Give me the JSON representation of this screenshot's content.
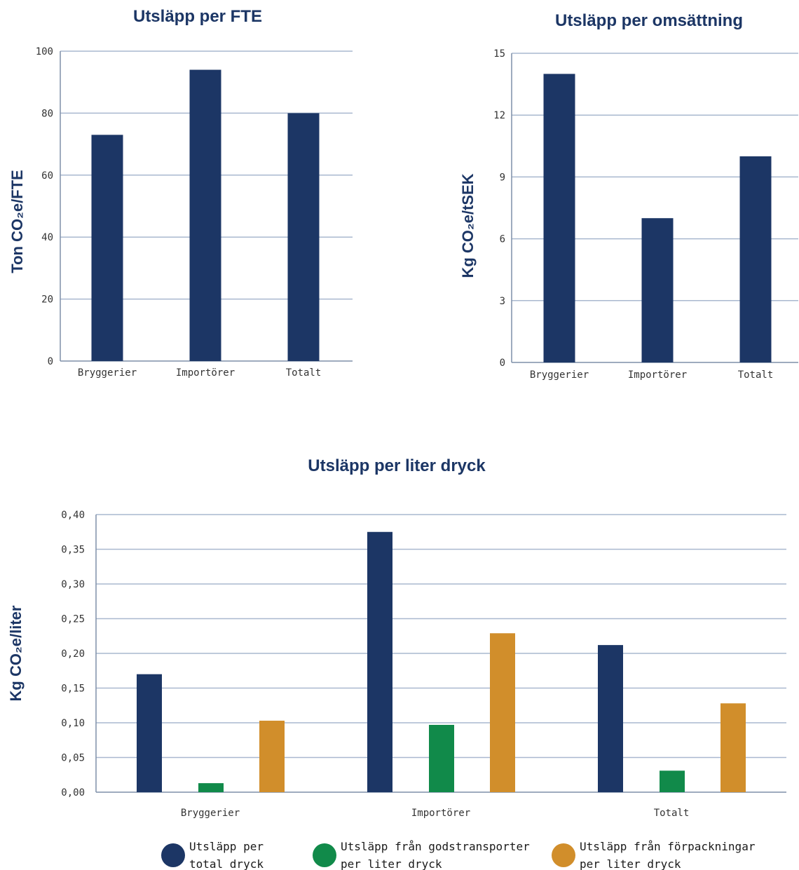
{
  "chart_data": [
    {
      "type": "bar",
      "title": "Utsläpp per FTE",
      "ylabel": "Ton CO₂e/FTE",
      "xlabel": "",
      "categories": [
        "Bryggerier",
        "Importörer",
        "Totalt"
      ],
      "values": [
        73,
        94,
        80
      ],
      "ylim": [
        0,
        100
      ],
      "yticks": [
        "0",
        "20",
        "40",
        "60",
        "80",
        "100"
      ],
      "color": "#1c3665",
      "grid": true
    },
    {
      "type": "bar",
      "title": "Utsläpp per omsättning",
      "ylabel": "Kg CO₂e/tSEK",
      "xlabel": "",
      "categories": [
        "Bryggerier",
        "Importörer",
        "Totalt"
      ],
      "values": [
        14,
        7,
        10
      ],
      "ylim": [
        0,
        15
      ],
      "yticks": [
        "0",
        "3",
        "6",
        "9",
        "12",
        "15"
      ],
      "color": "#1c3665",
      "grid": true
    },
    {
      "type": "bar",
      "title": "Utsläpp per liter dryck",
      "ylabel": "Kg CO₂e/liter",
      "xlabel": "",
      "categories": [
        "Bryggerier",
        "Importörer",
        "Totalt"
      ],
      "ylim": [
        0,
        0.4
      ],
      "yticks": [
        "0,00",
        "0,05",
        "0,10",
        "0,15",
        "0,20",
        "0,25",
        "0,30",
        "0,35",
        "0,40"
      ],
      "grid": true,
      "legend_position": "bottom",
      "series": [
        {
          "name": "Utsläpp per total dryck",
          "legend_lines": [
            "Utsläpp per",
            "total dryck"
          ],
          "values": [
            0.17,
            0.375,
            0.212
          ],
          "color": "#1c3665"
        },
        {
          "name": "Utsläpp från godstransporter per liter dryck",
          "legend_lines": [
            "Utsläpp från godstransporter",
            "per liter dryck"
          ],
          "values": [
            0.013,
            0.097,
            0.031
          ],
          "color": "#118a4a"
        },
        {
          "name": "Utsläpp från förpackningar per liter dryck",
          "legend_lines": [
            "Utsläpp från förpackningar",
            "per liter dryck"
          ],
          "values": [
            0.103,
            0.229,
            0.128
          ],
          "color": "#d18e2b"
        }
      ]
    }
  ]
}
